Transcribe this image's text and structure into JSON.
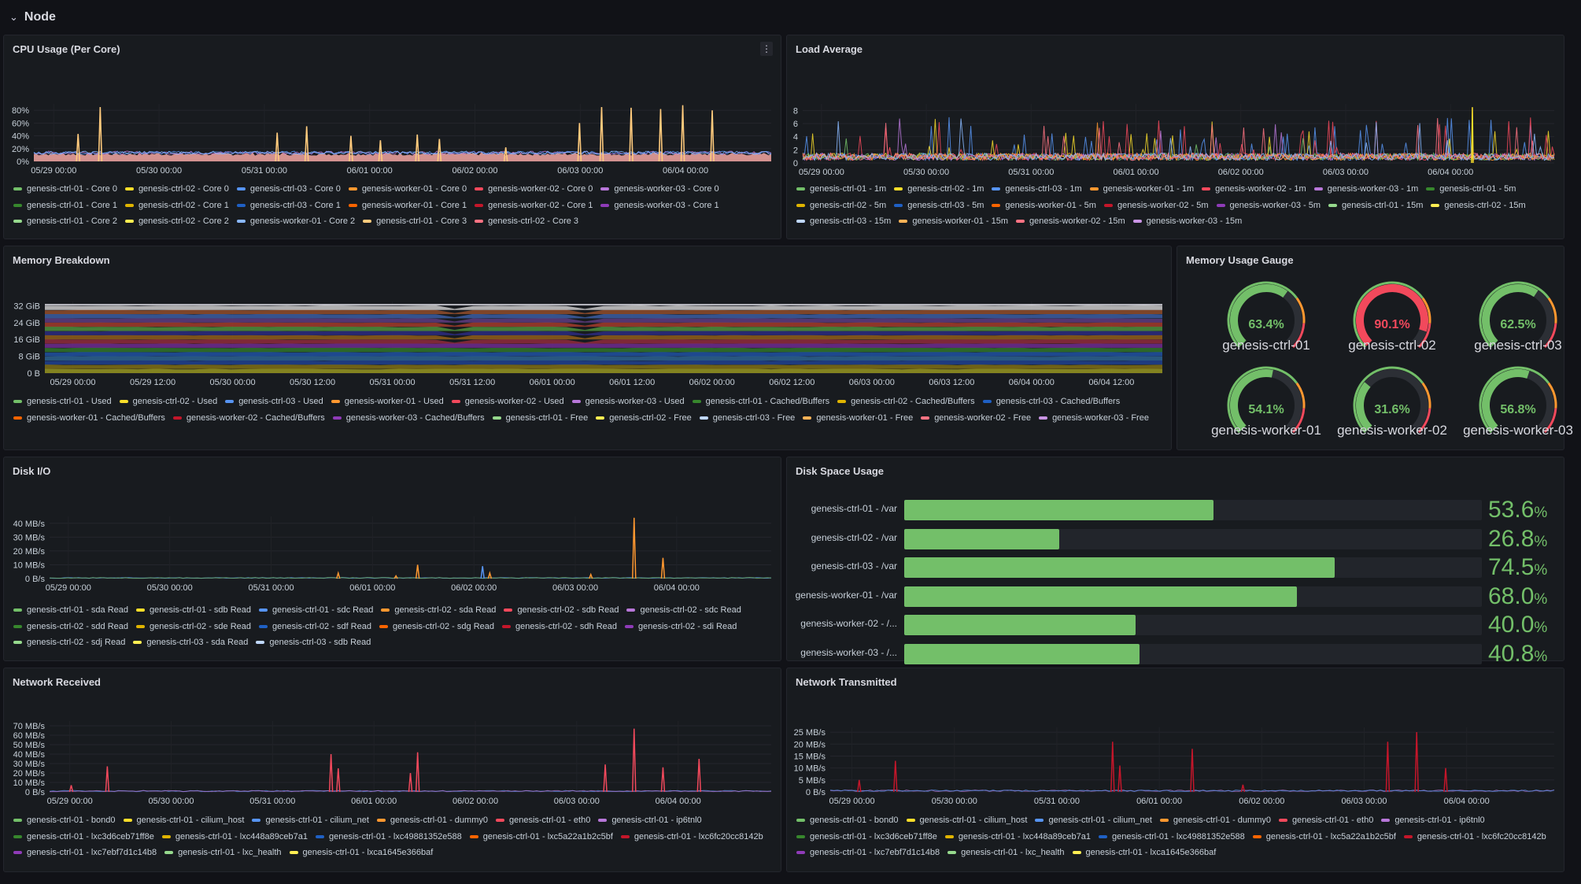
{
  "row": {
    "title": "Node",
    "chevron_icon": "chevron-down-icon"
  },
  "colors": {
    "green": "#73bf69",
    "yellow": "#fade2a",
    "blue": "#5794f2",
    "orange": "#ff9830",
    "red": "#f2495c",
    "purple": "#b877d9",
    "dark_green": "#37872d",
    "dark_yellow": "#e0b400",
    "dark_blue": "#1f60c4",
    "dark_orange": "#fa6400",
    "dark_red": "#c4162a",
    "dark_purple": "#8f3bb8",
    "pink": "#ff7383",
    "light_blue": "#8ab8ff",
    "light_yellow": "#ffee52",
    "light_green": "#96d98d"
  },
  "panels": {
    "cpu": {
      "title": "CPU Usage (Per Core)",
      "menu_icon": "kebab-menu-icon",
      "chart_data": {
        "type": "line",
        "title": "CPU Usage (Per Core)",
        "y_ticks": [
          "80%",
          "60%",
          "40%",
          "20%",
          "0%"
        ],
        "y_values": [
          80,
          60,
          40,
          20,
          0
        ],
        "ylim": [
          0,
          90
        ],
        "x_ticks": [
          "05/29 00:00",
          "05/30 00:00",
          "05/31 00:00",
          "06/01 00:00",
          "06/02 00:00",
          "06/03 00:00",
          "06/04 00:00"
        ],
        "series_note": "per-core CPU utilisation, baseline around 5-15% with spikes",
        "spikes": [
          {
            "x": 0.06,
            "y": 43
          },
          {
            "x": 0.09,
            "y": 85
          },
          {
            "x": 0.33,
            "y": 45
          },
          {
            "x": 0.37,
            "y": 55
          },
          {
            "x": 0.43,
            "y": 40
          },
          {
            "x": 0.47,
            "y": 33
          },
          {
            "x": 0.52,
            "y": 42
          },
          {
            "x": 0.55,
            "y": 35
          },
          {
            "x": 0.74,
            "y": 60
          },
          {
            "x": 0.77,
            "y": 85
          },
          {
            "x": 0.81,
            "y": 84
          },
          {
            "x": 0.85,
            "y": 82
          },
          {
            "x": 0.88,
            "y": 88
          },
          {
            "x": 0.92,
            "y": 80
          },
          {
            "x": 0.64,
            "y": 22
          }
        ]
      },
      "legend": [
        {
          "label": "genesis-ctrl-01 - Core 0",
          "color": "#73bf69"
        },
        {
          "label": "genesis-ctrl-02 - Core 0",
          "color": "#fade2a"
        },
        {
          "label": "genesis-ctrl-03 - Core 0",
          "color": "#5794f2"
        },
        {
          "label": "genesis-worker-01 - Core 0",
          "color": "#ff9830"
        },
        {
          "label": "genesis-worker-02 - Core 0",
          "color": "#f2495c"
        },
        {
          "label": "genesis-worker-03 - Core 0",
          "color": "#b877d9"
        },
        {
          "label": "genesis-ctrl-01 - Core 1",
          "color": "#37872d"
        },
        {
          "label": "genesis-ctrl-02 - Core 1",
          "color": "#e0b400"
        },
        {
          "label": "genesis-ctrl-03 - Core 1",
          "color": "#1f60c4"
        },
        {
          "label": "genesis-worker-01 - Core 1",
          "color": "#fa6400"
        },
        {
          "label": "genesis-worker-02 - Core 1",
          "color": "#c4162a"
        },
        {
          "label": "genesis-worker-03 - Core 1",
          "color": "#8f3bb8"
        },
        {
          "label": "genesis-ctrl-01 - Core 2",
          "color": "#96d98d"
        },
        {
          "label": "genesis-ctrl-02 - Core 2",
          "color": "#ffee52"
        },
        {
          "label": "genesis-worker-01 - Core 2",
          "color": "#8ab8ff"
        },
        {
          "label": "genesis-ctrl-01 - Core 3",
          "color": "#ffcb7d"
        },
        {
          "label": "genesis-ctrl-02 - Core 3",
          "color": "#ff7383"
        }
      ]
    },
    "load": {
      "title": "Load Average",
      "chart_data": {
        "type": "line",
        "title": "Load Average",
        "y_ticks": [
          "8",
          "6",
          "4",
          "2",
          "0"
        ],
        "y_values": [
          8,
          6,
          4,
          2,
          0
        ],
        "ylim": [
          0,
          9
        ],
        "x_ticks": [
          "05/29 00:00",
          "05/30 00:00",
          "05/31 00:00",
          "06/01 00:00",
          "06/02 00:00",
          "06/03 00:00",
          "06/04 00:00"
        ],
        "series_note": "1m/5m/15m load averages, baseline 0-2 with frequent spikes to 4-8"
      },
      "legend": [
        {
          "label": "genesis-ctrl-01 - 1m",
          "color": "#73bf69"
        },
        {
          "label": "genesis-ctrl-02 - 1m",
          "color": "#fade2a"
        },
        {
          "label": "genesis-ctrl-03 - 1m",
          "color": "#5794f2"
        },
        {
          "label": "genesis-worker-01 - 1m",
          "color": "#ff9830"
        },
        {
          "label": "genesis-worker-02 - 1m",
          "color": "#f2495c"
        },
        {
          "label": "genesis-worker-03 - 1m",
          "color": "#b877d9"
        },
        {
          "label": "genesis-ctrl-01 - 5m",
          "color": "#37872d"
        },
        {
          "label": "genesis-ctrl-02 - 5m",
          "color": "#e0b400"
        },
        {
          "label": "genesis-ctrl-03 - 5m",
          "color": "#1f60c4"
        },
        {
          "label": "genesis-worker-01 - 5m",
          "color": "#fa6400"
        },
        {
          "label": "genesis-worker-02 - 5m",
          "color": "#c4162a"
        },
        {
          "label": "genesis-worker-03 - 5m",
          "color": "#8f3bb8"
        },
        {
          "label": "genesis-ctrl-01 - 15m",
          "color": "#96d98d"
        },
        {
          "label": "genesis-ctrl-02 - 15m",
          "color": "#ffee52"
        },
        {
          "label": "genesis-ctrl-03 - 15m",
          "color": "#c0d8ff"
        },
        {
          "label": "genesis-worker-01 - 15m",
          "color": "#ffb357"
        },
        {
          "label": "genesis-worker-02 - 15m",
          "color": "#ff7383"
        },
        {
          "label": "genesis-worker-03 - 15m",
          "color": "#ca95e5"
        }
      ]
    },
    "memory": {
      "title": "Memory Breakdown",
      "chart_data": {
        "type": "area",
        "title": "Memory Breakdown",
        "y_ticks": [
          "32 GiB",
          "24 GiB",
          "16 GiB",
          "8 GiB",
          "0 B"
        ],
        "y_values": [
          32,
          24,
          16,
          8,
          0
        ],
        "ylim": [
          0,
          34
        ],
        "x_ticks": [
          "05/29 00:00",
          "05/29 12:00",
          "05/30 00:00",
          "05/30 12:00",
          "05/31 00:00",
          "05/31 12:00",
          "06/01 00:00",
          "06/01 12:00",
          "06/02 00:00",
          "06/02 12:00",
          "06/03 00:00",
          "06/03 12:00",
          "06/04 00:00",
          "06/04 12:00"
        ],
        "stack_note": "stacked used / cached-buffers / free memory per node, total approximately 32 GiB"
      },
      "legend": [
        {
          "label": "genesis-ctrl-01 - Used",
          "color": "#73bf69"
        },
        {
          "label": "genesis-ctrl-02 - Used",
          "color": "#fade2a"
        },
        {
          "label": "genesis-ctrl-03 - Used",
          "color": "#5794f2"
        },
        {
          "label": "genesis-worker-01 - Used",
          "color": "#ff9830"
        },
        {
          "label": "genesis-worker-02 - Used",
          "color": "#f2495c"
        },
        {
          "label": "genesis-worker-03 - Used",
          "color": "#b877d9"
        },
        {
          "label": "genesis-ctrl-01 - Cached/Buffers",
          "color": "#37872d"
        },
        {
          "label": "genesis-ctrl-02 - Cached/Buffers",
          "color": "#e0b400"
        },
        {
          "label": "genesis-ctrl-03 - Cached/Buffers",
          "color": "#1f60c4"
        },
        {
          "label": "genesis-worker-01 - Cached/Buffers",
          "color": "#fa6400"
        },
        {
          "label": "genesis-worker-02 - Cached/Buffers",
          "color": "#c4162a"
        },
        {
          "label": "genesis-worker-03 - Cached/Buffers",
          "color": "#8f3bb8"
        },
        {
          "label": "genesis-ctrl-01 - Free",
          "color": "#96d98d"
        },
        {
          "label": "genesis-ctrl-02 - Free",
          "color": "#ffee52"
        },
        {
          "label": "genesis-ctrl-03 - Free",
          "color": "#c0d8ff"
        },
        {
          "label": "genesis-worker-01 - Free",
          "color": "#ffb357"
        },
        {
          "label": "genesis-worker-02 - Free",
          "color": "#ff7383"
        },
        {
          "label": "genesis-worker-03 - Free",
          "color": "#ca95e5"
        }
      ]
    },
    "gauge": {
      "title": "Memory Usage Gauge",
      "gauges": [
        {
          "name": "genesis-ctrl-01",
          "value": 63.4,
          "label": "63.4%",
          "color": "#73bf69"
        },
        {
          "name": "genesis-ctrl-02",
          "value": 90.1,
          "label": "90.1%",
          "color": "#f2495c"
        },
        {
          "name": "genesis-ctrl-03",
          "value": 62.5,
          "label": "62.5%",
          "color": "#73bf69"
        },
        {
          "name": "genesis-worker-01",
          "value": 54.1,
          "label": "54.1%",
          "color": "#73bf69"
        },
        {
          "name": "genesis-worker-02",
          "value": 31.6,
          "label": "31.6%",
          "color": "#73bf69"
        },
        {
          "name": "genesis-worker-03",
          "value": 56.8,
          "label": "56.8%",
          "color": "#73bf69"
        }
      ],
      "threshold_colors": [
        "#73bf69",
        "#ff9830",
        "#f2495c"
      ]
    },
    "diskio": {
      "title": "Disk I/O",
      "chart_data": {
        "type": "line",
        "title": "Disk I/O",
        "y_ticks": [
          "40 MB/s",
          "30 MB/s",
          "20 MB/s",
          "10 MB/s",
          "0 B/s"
        ],
        "y_values": [
          40,
          30,
          20,
          10,
          0
        ],
        "ylim": [
          0,
          45
        ],
        "x_ticks": [
          "05/29 00:00",
          "05/30 00:00",
          "05/31 00:00",
          "06/01 00:00",
          "06/02 00:00",
          "06/03 00:00",
          "06/04 00:00"
        ],
        "spikes": [
          {
            "x": 0.4,
            "y": 4,
            "color": "#ff9830"
          },
          {
            "x": 0.51,
            "y": 10,
            "color": "#ff9830"
          },
          {
            "x": 0.6,
            "y": 9,
            "color": "#5794f2"
          },
          {
            "x": 0.61,
            "y": 4,
            "color": "#ff9830"
          },
          {
            "x": 0.75,
            "y": 3,
            "color": "#ff9830"
          },
          {
            "x": 0.81,
            "y": 44,
            "color": "#ff9830"
          },
          {
            "x": 0.85,
            "y": 15,
            "color": "#ff9830"
          },
          {
            "x": 0.48,
            "y": 2,
            "color": "#ff9830"
          }
        ]
      },
      "legend": [
        {
          "label": "genesis-ctrl-01 - sda Read",
          "color": "#73bf69"
        },
        {
          "label": "genesis-ctrl-01 - sdb Read",
          "color": "#fade2a"
        },
        {
          "label": "genesis-ctrl-01 - sdc Read",
          "color": "#5794f2"
        },
        {
          "label": "genesis-ctrl-02 - sda Read",
          "color": "#ff9830"
        },
        {
          "label": "genesis-ctrl-02 - sdb Read",
          "color": "#f2495c"
        },
        {
          "label": "genesis-ctrl-02 - sdc Read",
          "color": "#b877d9"
        },
        {
          "label": "genesis-ctrl-02 - sdd Read",
          "color": "#37872d"
        },
        {
          "label": "genesis-ctrl-02 - sde Read",
          "color": "#e0b400"
        },
        {
          "label": "genesis-ctrl-02 - sdf Read",
          "color": "#1f60c4"
        },
        {
          "label": "genesis-ctrl-02 - sdg Read",
          "color": "#fa6400"
        },
        {
          "label": "genesis-ctrl-02 - sdh Read",
          "color": "#c4162a"
        },
        {
          "label": "genesis-ctrl-02 - sdi Read",
          "color": "#8f3bb8"
        },
        {
          "label": "genesis-ctrl-02 - sdj Read",
          "color": "#96d98d"
        },
        {
          "label": "genesis-ctrl-03 - sda Read",
          "color": "#ffee52"
        },
        {
          "label": "genesis-ctrl-03 - sdb Read",
          "color": "#c0d8ff"
        }
      ]
    },
    "disk": {
      "title": "Disk Space Usage",
      "bars": [
        {
          "label": "genesis-ctrl-01 - /var",
          "value": 53.6,
          "num": "53.6",
          "unit": "%"
        },
        {
          "label": "genesis-ctrl-02 - /var",
          "value": 26.8,
          "num": "26.8",
          "unit": "%"
        },
        {
          "label": "genesis-ctrl-03 - /var",
          "value": 74.5,
          "num": "74.5",
          "unit": "%"
        },
        {
          "label": "genesis-worker-01 - /var",
          "value": 68.0,
          "num": "68.0",
          "unit": "%"
        },
        {
          "label": "genesis-worker-02 - /...",
          "value": 40.0,
          "num": "40.0",
          "unit": "%"
        },
        {
          "label": "genesis-worker-03 - /...",
          "value": 40.8,
          "num": "40.8",
          "unit": "%"
        }
      ]
    },
    "netrx": {
      "title": "Network Received",
      "chart_data": {
        "type": "line",
        "title": "Network Received",
        "y_ticks": [
          "70 MB/s",
          "60 MB/s",
          "50 MB/s",
          "40 MB/s",
          "30 MB/s",
          "20 MB/s",
          "10 MB/s",
          "0 B/s"
        ],
        "y_values": [
          70,
          60,
          50,
          40,
          30,
          20,
          10,
          0
        ],
        "ylim": [
          0,
          75
        ],
        "x_ticks": [
          "05/29 00:00",
          "05/30 00:00",
          "05/31 00:00",
          "06/01 00:00",
          "06/02 00:00",
          "06/03 00:00",
          "06/04 00:00"
        ],
        "spikes": [
          {
            "x": 0.08,
            "y": 27
          },
          {
            "x": 0.39,
            "y": 40
          },
          {
            "x": 0.4,
            "y": 25
          },
          {
            "x": 0.5,
            "y": 20
          },
          {
            "x": 0.51,
            "y": 42
          },
          {
            "x": 0.77,
            "y": 29
          },
          {
            "x": 0.81,
            "y": 67
          },
          {
            "x": 0.85,
            "y": 26
          },
          {
            "x": 0.9,
            "y": 35
          },
          {
            "x": 0.03,
            "y": 7
          }
        ]
      },
      "legend": [
        {
          "label": "genesis-ctrl-01 - bond0",
          "color": "#73bf69"
        },
        {
          "label": "genesis-ctrl-01 - cilium_host",
          "color": "#fade2a"
        },
        {
          "label": "genesis-ctrl-01 - cilium_net",
          "color": "#5794f2"
        },
        {
          "label": "genesis-ctrl-01 - dummy0",
          "color": "#ff9830"
        },
        {
          "label": "genesis-ctrl-01 - eth0",
          "color": "#f2495c"
        },
        {
          "label": "genesis-ctrl-01 - ip6tnl0",
          "color": "#b877d9"
        },
        {
          "label": "genesis-ctrl-01 - lxc3d6ceb71ff8e",
          "color": "#37872d"
        },
        {
          "label": "genesis-ctrl-01 - lxc448a89ceb7a1",
          "color": "#e0b400"
        },
        {
          "label": "genesis-ctrl-01 - lxc49881352e588",
          "color": "#1f60c4"
        },
        {
          "label": "genesis-ctrl-01 - lxc5a22a1b2c5bf",
          "color": "#fa6400"
        },
        {
          "label": "genesis-ctrl-01 - lxc6fc20cc8142b",
          "color": "#c4162a"
        },
        {
          "label": "genesis-ctrl-01 - lxc7ebf7d1c14b8",
          "color": "#8f3bb8"
        },
        {
          "label": "genesis-ctrl-01 - lxc_health",
          "color": "#96d98d"
        },
        {
          "label": "genesis-ctrl-01 - lxca1645e366baf",
          "color": "#ffee52"
        }
      ]
    },
    "nettx": {
      "title": "Network Transmitted",
      "chart_data": {
        "type": "line",
        "title": "Network Transmitted",
        "y_ticks": [
          "25 MB/s",
          "20 MB/s",
          "15 MB/s",
          "10 MB/s",
          "5 MB/s",
          "0 B/s"
        ],
        "y_values": [
          25,
          20,
          15,
          10,
          5,
          0
        ],
        "ylim": [
          0,
          27
        ],
        "x_ticks": [
          "05/29 00:00",
          "05/30 00:00",
          "05/31 00:00",
          "06/01 00:00",
          "06/02 00:00",
          "06/03 00:00",
          "06/04 00:00"
        ],
        "spikes": [
          {
            "x": 0.09,
            "y": 13
          },
          {
            "x": 0.04,
            "y": 5
          },
          {
            "x": 0.39,
            "y": 21
          },
          {
            "x": 0.4,
            "y": 11
          },
          {
            "x": 0.5,
            "y": 18
          },
          {
            "x": 0.77,
            "y": 21
          },
          {
            "x": 0.81,
            "y": 25
          },
          {
            "x": 0.85,
            "y": 10
          },
          {
            "x": 0.57,
            "y": 3
          }
        ]
      },
      "legend": [
        {
          "label": "genesis-ctrl-01 - bond0",
          "color": "#73bf69"
        },
        {
          "label": "genesis-ctrl-01 - cilium_host",
          "color": "#fade2a"
        },
        {
          "label": "genesis-ctrl-01 - cilium_net",
          "color": "#5794f2"
        },
        {
          "label": "genesis-ctrl-01 - dummy0",
          "color": "#ff9830"
        },
        {
          "label": "genesis-ctrl-01 - eth0",
          "color": "#f2495c"
        },
        {
          "label": "genesis-ctrl-01 - ip6tnl0",
          "color": "#b877d9"
        },
        {
          "label": "genesis-ctrl-01 - lxc3d6ceb71ff8e",
          "color": "#37872d"
        },
        {
          "label": "genesis-ctrl-01 - lxc448a89ceb7a1",
          "color": "#e0b400"
        },
        {
          "label": "genesis-ctrl-01 - lxc49881352e588",
          "color": "#1f60c4"
        },
        {
          "label": "genesis-ctrl-01 - lxc5a22a1b2c5bf",
          "color": "#fa6400"
        },
        {
          "label": "genesis-ctrl-01 - lxc6fc20cc8142b",
          "color": "#c4162a"
        },
        {
          "label": "genesis-ctrl-01 - lxc7ebf7d1c14b8",
          "color": "#8f3bb8"
        },
        {
          "label": "genesis-ctrl-01 - lxc_health",
          "color": "#96d98d"
        },
        {
          "label": "genesis-ctrl-01 - lxca1645e366baf",
          "color": "#ffee52"
        }
      ]
    }
  }
}
